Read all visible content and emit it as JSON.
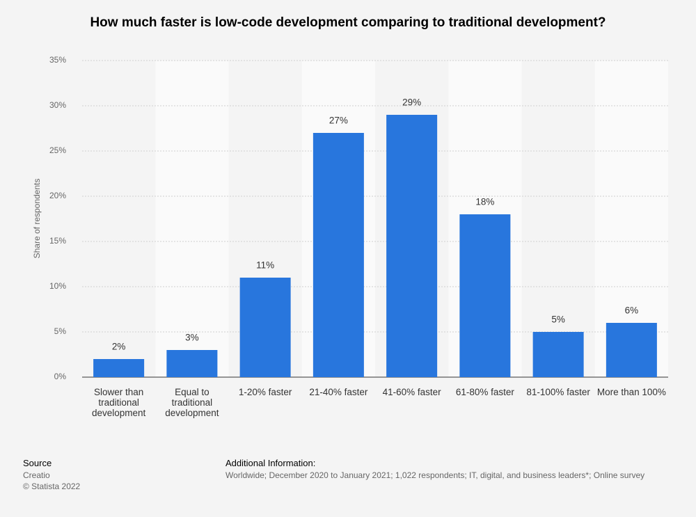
{
  "chart_data": {
    "type": "bar",
    "title": "How much faster is low-code development comparing to traditional development?",
    "y_label": "Share of respondents",
    "categories": [
      "Slower than traditional development",
      "Equal to traditional development",
      "1-20% faster",
      "21-40% faster",
      "41-60% faster",
      "61-80% faster",
      "81-100% faster",
      "More than 100%"
    ],
    "values": [
      2,
      3,
      11,
      27,
      29,
      18,
      5,
      6
    ],
    "value_labels": [
      "2%",
      "3%",
      "11%",
      "27%",
      "29%",
      "18%",
      "5%",
      "6%"
    ],
    "color": "#2876dd",
    "ylim": [
      0,
      35
    ],
    "yticks": [
      {
        "value": 0,
        "label": "0%"
      },
      {
        "value": 5,
        "label": "5%"
      },
      {
        "value": 10,
        "label": "10%"
      },
      {
        "value": 15,
        "label": "15%"
      },
      {
        "value": 20,
        "label": "20%"
      },
      {
        "value": 25,
        "label": "25%"
      },
      {
        "value": 30,
        "label": "30%"
      },
      {
        "value": 35,
        "label": "35%"
      }
    ],
    "grid": true
  },
  "footer": {
    "source_heading": "Source",
    "source": "Creatio",
    "copyright": "© Statista 2022",
    "info_heading": "Additional Information:",
    "info": "Worldwide; December 2020 to January 2021; 1,022 respondents; IT, digital, and business leaders*; Online survey"
  }
}
